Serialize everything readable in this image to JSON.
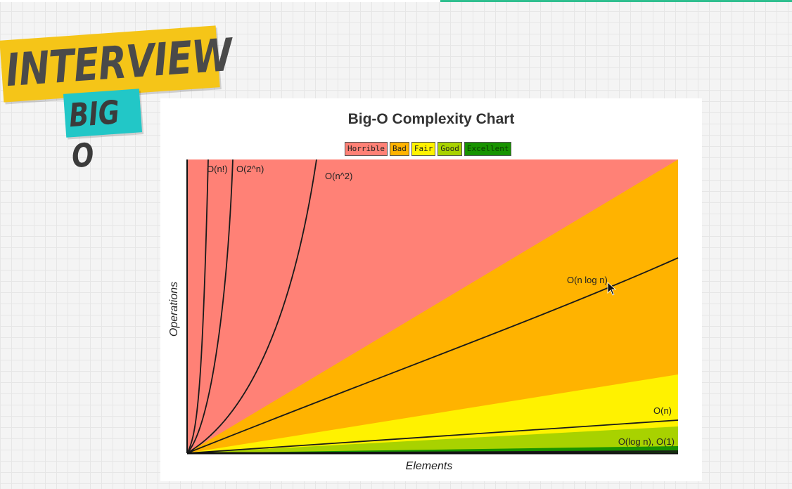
{
  "badges": {
    "main": "INTERVIEW",
    "sub": "BIG O"
  },
  "chart_data": {
    "type": "area",
    "title": "Big-O Complexity Chart",
    "xlabel": "Elements",
    "ylabel": "Operations",
    "legend": [
      {
        "label": "Horrible",
        "color": "#ff8176"
      },
      {
        "label": "Bad",
        "color": "#ffb300"
      },
      {
        "label": "Fair",
        "color": "#fff200"
      },
      {
        "label": "Good",
        "color": "#a8d200"
      },
      {
        "label": "Excellent",
        "color": "#189300"
      }
    ],
    "regions": [
      {
        "name": "Horrible",
        "color": "#ff8176"
      },
      {
        "name": "Bad",
        "color": "#ffb300"
      },
      {
        "name": "Fair",
        "color": "#fff200"
      },
      {
        "name": "Good",
        "color": "#a8d200"
      },
      {
        "name": "Excellent",
        "color": "#189300"
      }
    ],
    "curves": [
      {
        "name": "O(n!)",
        "label": "O(n!)"
      },
      {
        "name": "O(2^n)",
        "label": "O(2^n)"
      },
      {
        "name": "O(n^2)",
        "label": "O(n^2)"
      },
      {
        "name": "O(n log n)",
        "label": "O(n log n)"
      },
      {
        "name": "O(n)",
        "label": "O(n)"
      },
      {
        "name": "O(log n), O(1)",
        "label": "O(log n), O(1)"
      }
    ],
    "grid": false
  }
}
